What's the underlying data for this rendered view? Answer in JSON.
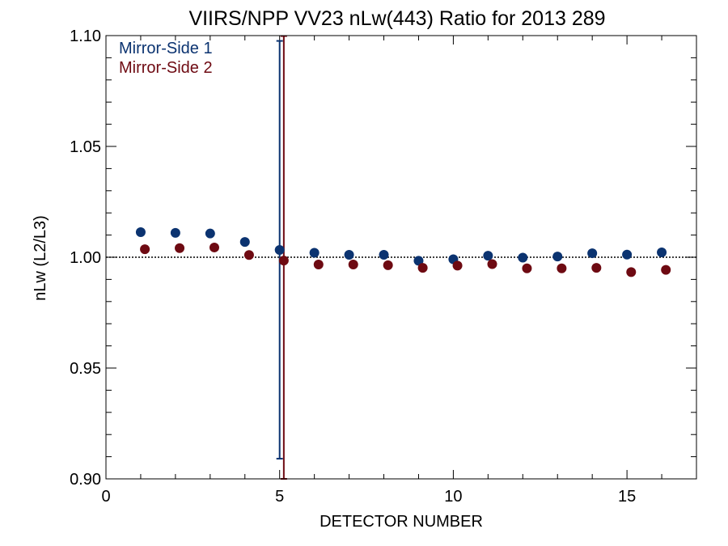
{
  "chart_data": {
    "type": "scatter",
    "title": "VIIRS/NPP VV23 nLw(443) Ratio for 2013 289",
    "xlabel": "DETECTOR NUMBER",
    "ylabel": "nLw (L2/L3)",
    "xlim": [
      0,
      17
    ],
    "ylim": [
      0.9,
      1.1
    ],
    "xticks": [
      0,
      5,
      10,
      15
    ],
    "xtick_labels": [
      "0",
      "5",
      "10",
      "15"
    ],
    "yticks": [
      0.9,
      0.95,
      1.0,
      1.05,
      1.1
    ],
    "ytick_labels": [
      "0.90",
      "0.95",
      "1.00",
      "1.05",
      "1.10"
    ],
    "reference_line": 1.0,
    "legend_position": "top-left",
    "grid": false,
    "series": [
      {
        "name": "Mirror-Side 1",
        "color": "#0b3370",
        "x_offset": 0,
        "x": [
          1,
          2,
          3,
          4,
          5,
          6,
          7,
          8,
          9,
          10,
          11,
          12,
          13,
          14,
          15,
          16
        ],
        "values": [
          1.0113,
          1.011,
          1.0107,
          1.0069,
          1.0033,
          1.002,
          1.0011,
          1.0011,
          0.9984,
          0.9991,
          1.0007,
          0.9998,
          1.0003,
          1.0018,
          1.0012,
          1.0022
        ],
        "error_bar": {
          "x": 5,
          "low": 0.9091,
          "high": 1.0976
        }
      },
      {
        "name": "Mirror-Side 2",
        "color": "#6e0a12",
        "x_offset": 0.12,
        "x": [
          1,
          2,
          3,
          4,
          5,
          6,
          7,
          8,
          9,
          10,
          11,
          12,
          13,
          14,
          15,
          16
        ],
        "values": [
          1.0036,
          1.0041,
          1.0044,
          1.001,
          0.9985,
          0.9967,
          0.9967,
          0.9964,
          0.9952,
          0.9962,
          0.9969,
          0.995,
          0.995,
          0.9952,
          0.9933,
          0.9943
        ],
        "error_bar": {
          "x": 5,
          "low": 0.9,
          "high": 1.0998
        }
      }
    ]
  }
}
